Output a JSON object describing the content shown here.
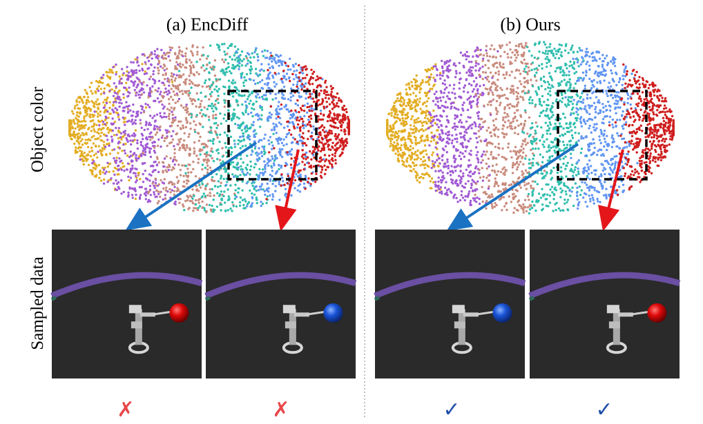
{
  "panels": [
    {
      "title": "(a) EncDiff",
      "results": [
        "✗",
        "✗"
      ],
      "result_color": "#e8474a",
      "sample_balls": [
        "#e00a0a",
        "#1a55d8"
      ],
      "scatter_bands": [
        {
          "color": "#e3ad24",
          "spread": 0.055
        },
        {
          "color": "#a15ad4",
          "spread": 0.045
        },
        {
          "color": "#c98b7d",
          "spread": 0.05
        },
        {
          "color": "#30beae",
          "spread": 0.045
        },
        {
          "color": "#6195f2",
          "spread": 0.05
        },
        {
          "color": "#cf1e1e",
          "spread": 0.055
        }
      ],
      "arrows": [
        {
          "color": "#1b72c2",
          "target": "left"
        },
        {
          "color": "#e4161a",
          "target": "right"
        }
      ]
    },
    {
      "title": "(b) Ours",
      "results": [
        "✓",
        "✓"
      ],
      "result_color": "#1f4fa8",
      "sample_balls": [
        "#1a55d8",
        "#e00a0a"
      ],
      "scatter_bands": [
        {
          "color": "#e3ad24",
          "spread": 0.02
        },
        {
          "color": "#a15ad4",
          "spread": 0.02
        },
        {
          "color": "#c98b7d",
          "spread": 0.02
        },
        {
          "color": "#30beae",
          "spread": 0.02
        },
        {
          "color": "#6195f2",
          "spread": 0.02
        },
        {
          "color": "#cf1e1e",
          "spread": 0.02
        }
      ],
      "arrows": [
        {
          "color": "#1b72c2",
          "target": "left"
        },
        {
          "color": "#e4161a",
          "target": "right"
        }
      ]
    }
  ],
  "row_labels": {
    "top": "Object color",
    "bottom": "Sampled data"
  },
  "colors": {
    "tile_background": "#2a2a2a",
    "track_arc": "#6a4fa3",
    "robot_arm": "#d6d6d6",
    "box": "#000000",
    "divider": "#9a9a9a"
  }
}
